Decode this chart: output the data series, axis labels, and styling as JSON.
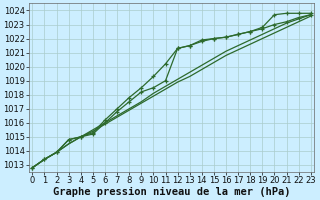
{
  "bg_color": "#cceeff",
  "grid_color": "#aacccc",
  "line_color": "#2d6a2d",
  "xlabel": "Graphe pression niveau de la mer (hPa)",
  "xlabel_fontsize": 7.5,
  "ylim": [
    1012.5,
    1024.5
  ],
  "xlim": [
    -0.3,
    23.3
  ],
  "yticks": [
    1013,
    1014,
    1015,
    1016,
    1017,
    1018,
    1019,
    1020,
    1021,
    1022,
    1023,
    1024
  ],
  "xticks": [
    0,
    1,
    2,
    3,
    4,
    5,
    6,
    7,
    8,
    9,
    10,
    11,
    12,
    13,
    14,
    15,
    16,
    17,
    18,
    19,
    20,
    21,
    22,
    23
  ],
  "series_no_marker": [
    [
      1012.8,
      1013.4,
      1013.9,
      1014.5,
      1015.0,
      1015.5,
      1016.0,
      1016.5,
      1017.0,
      1017.5,
      1018.1,
      1018.6,
      1019.1,
      1019.6,
      1020.1,
      1020.6,
      1021.1,
      1021.5,
      1021.9,
      1022.3,
      1022.7,
      1023.1,
      1023.4,
      1023.7
    ],
    [
      1012.8,
      1013.4,
      1013.9,
      1014.5,
      1015.0,
      1015.4,
      1015.9,
      1016.4,
      1016.9,
      1017.4,
      1017.9,
      1018.4,
      1018.9,
      1019.3,
      1019.8,
      1020.3,
      1020.8,
      1021.2,
      1021.6,
      1022.0,
      1022.4,
      1022.8,
      1023.2,
      1023.6
    ]
  ],
  "series_with_marker": [
    [
      1012.8,
      1013.4,
      1013.9,
      1014.8,
      1015.0,
      1015.2,
      1016.0,
      1016.8,
      1017.5,
      1018.2,
      1018.5,
      1019.0,
      1021.3,
      1021.5,
      1021.8,
      1022.0,
      1022.1,
      1022.3,
      1022.5,
      1022.7,
      1023.0,
      1023.2,
      1023.5,
      1023.7
    ],
    [
      1012.8,
      1013.4,
      1013.9,
      1014.8,
      1015.0,
      1015.3,
      1016.2,
      1017.0,
      1017.8,
      1018.5,
      1019.3,
      1020.2,
      1021.3,
      1021.5,
      1021.9,
      1022.0,
      1022.1,
      1022.3,
      1022.5,
      1022.8,
      1023.7,
      1023.8,
      1023.8,
      1023.8
    ]
  ],
  "tick_fontsize": 6.0,
  "linewidth": 0.9
}
